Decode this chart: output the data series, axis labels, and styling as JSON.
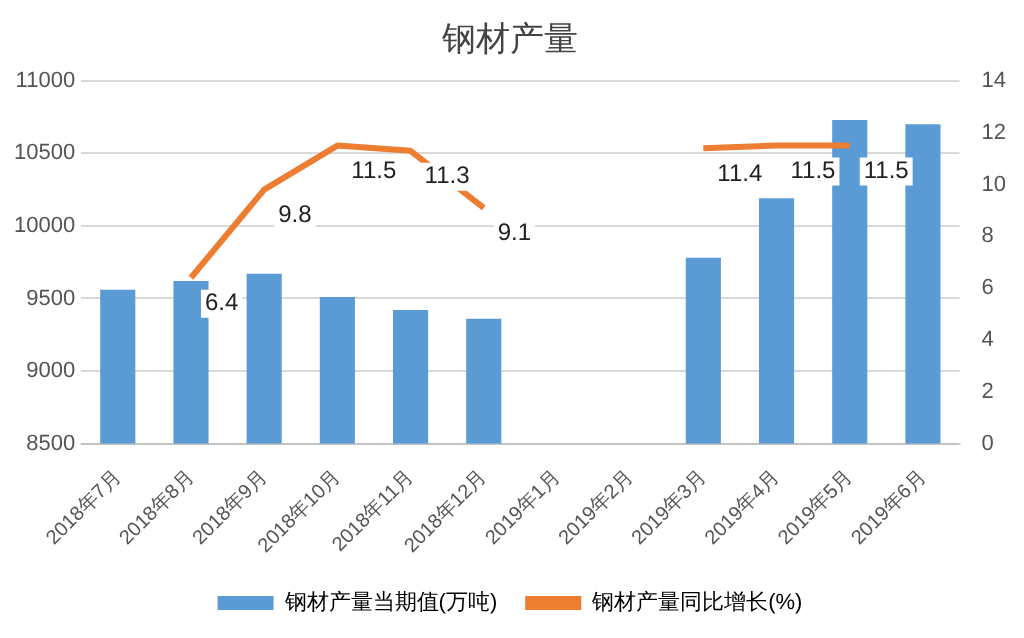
{
  "chart_data": {
    "type": "bar",
    "title": "钢材产量",
    "categories": [
      "2018年7月",
      "2018年8月",
      "2018年9月",
      "2018年10月",
      "2018年11月",
      "2018年12月",
      "2019年1月",
      "2019年2月",
      "2019年3月",
      "2019年4月",
      "2019年5月",
      "2019年6月"
    ],
    "series": [
      {
        "name": "钢材产量当期值(万吨)",
        "color": "#5b9bd5",
        "values": [
          9560,
          9620,
          9670,
          9510,
          9420,
          9360,
          null,
          null,
          9780,
          10190,
          10730,
          10700
        ]
      },
      {
        "name": "钢材产量同比增长(%)",
        "type": "line",
        "axis": "y2",
        "color": "#ed7d31",
        "values": [
          null,
          6.4,
          9.8,
          11.5,
          11.3,
          9.1,
          null,
          null,
          11.4,
          11.5,
          11.5,
          null
        ],
        "value_labels": [
          null,
          "6.4",
          "9.8",
          "11.5",
          "11.3",
          "9.1",
          null,
          null,
          "11.4",
          "11.5",
          "11.5",
          null
        ]
      }
    ],
    "ylim": [
      8500,
      11000
    ],
    "yticks": [
      8500,
      9000,
      9500,
      10000,
      10500,
      11000
    ],
    "y2lim": [
      0,
      14
    ],
    "y2ticks": [
      0,
      2,
      4,
      6,
      8,
      10,
      12,
      14
    ],
    "grid": "y",
    "legend": "bottom",
    "marker": "none"
  }
}
